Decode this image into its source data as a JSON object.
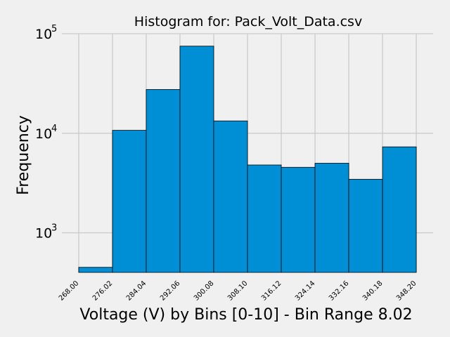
{
  "chart_data": {
    "type": "bar",
    "title": "Histogram for: Pack_Volt_Data.csv",
    "xlabel": "Voltage (V) by Bins [0-10] - Bin Range 8.02",
    "ylabel": "Frequency",
    "yscale": "log",
    "ylim": [
      400,
      100000
    ],
    "bin_edges": [
      268.0,
      276.02,
      284.04,
      292.06,
      300.08,
      308.1,
      316.12,
      324.14,
      332.16,
      340.18,
      348.2
    ],
    "x_tick_labels": [
      "268.00",
      "276.02",
      "284.04",
      "292.06",
      "300.08",
      "308.10",
      "316.12",
      "324.14",
      "332.16",
      "340.18",
      "348.20"
    ],
    "values": [
      450,
      10700,
      27500,
      75000,
      13300,
      4800,
      4550,
      5000,
      3450,
      7300
    ],
    "y_ticks": [
      1000,
      10000,
      100000
    ],
    "y_tick_labels": [
      {
        "base": "10",
        "exp": "3"
      },
      {
        "base": "10",
        "exp": "4"
      },
      {
        "base": "10",
        "exp": "5"
      }
    ],
    "grid": true,
    "colors": {
      "bar_fill": "#008fd5",
      "bar_edge": "#000000",
      "grid": "#cbcbcb",
      "background": "#f0f0f0"
    }
  }
}
